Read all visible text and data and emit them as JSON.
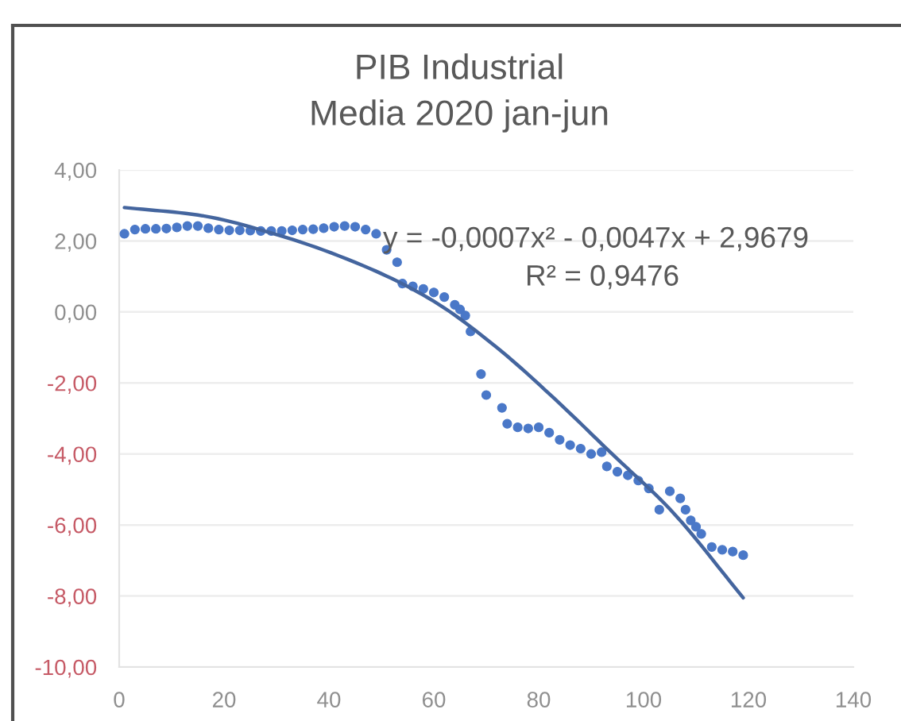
{
  "chart_data": {
    "type": "scatter",
    "title": "PIB Industrial",
    "subtitle": "Media 2020 jan-jun",
    "series": [
      {
        "color": "#4a78c8",
        "marker": "circle",
        "x": [
          1,
          3,
          5,
          7,
          9,
          11,
          13,
          15,
          17,
          19,
          21,
          23,
          25,
          27,
          29,
          31,
          33,
          35,
          37,
          39,
          41,
          43,
          45,
          47,
          49,
          51,
          53,
          54,
          56,
          58,
          60,
          62,
          64,
          65,
          66,
          67,
          69,
          70,
          73,
          74,
          76,
          78,
          80,
          82,
          84,
          86,
          88,
          90,
          92,
          93,
          95,
          97,
          99,
          101,
          103,
          105,
          107,
          108,
          109,
          110,
          111,
          113,
          115,
          117,
          119
        ],
        "values": [
          2.2,
          2.32,
          2.34,
          2.34,
          2.35,
          2.38,
          2.42,
          2.42,
          2.36,
          2.32,
          2.3,
          2.3,
          2.29,
          2.28,
          2.28,
          2.28,
          2.3,
          2.32,
          2.33,
          2.36,
          2.4,
          2.42,
          2.4,
          2.32,
          2.2,
          1.75,
          1.4,
          0.8,
          0.72,
          0.65,
          0.55,
          0.42,
          0.2,
          0.07,
          -0.1,
          -0.55,
          -1.75,
          -2.34,
          -2.7,
          -3.15,
          -3.25,
          -3.28,
          -3.25,
          -3.4,
          -3.6,
          -3.75,
          -3.85,
          -4.0,
          -3.95,
          -4.35,
          -4.5,
          -4.6,
          -4.75,
          -4.97,
          -5.57,
          -5.05,
          -5.25,
          -5.57,
          -5.87,
          -6.05,
          -6.25,
          -6.62,
          -6.7,
          -6.75,
          -6.85
        ]
      },
      {
        "type": "line",
        "color": "#44659e",
        "x": [
          1,
          15,
          30,
          48,
          60,
          72,
          83,
          94,
          105,
          119
        ],
        "values": [
          2.94,
          2.73,
          2.18,
          1.21,
          0.3,
          -1.0,
          -2.44,
          -4.0,
          -5.55,
          -8.05
        ]
      }
    ],
    "xlim": [
      0,
      140
    ],
    "xticks": [
      0,
      20,
      40,
      60,
      80,
      100,
      120,
      140
    ],
    "ylim": [
      -10,
      4
    ],
    "yticks": [
      {
        "value": 4,
        "label": "4,00"
      },
      {
        "value": 2,
        "label": "2,00"
      },
      {
        "value": 0,
        "label": "0,00"
      },
      {
        "value": -2,
        "label": "-2,00"
      },
      {
        "value": -4,
        "label": "-4,00"
      },
      {
        "value": -6,
        "label": "-6,00"
      },
      {
        "value": -8,
        "label": "-8,00"
      },
      {
        "value": -10,
        "label": "-10,00"
      }
    ],
    "grid": "y",
    "annotations": [
      "y = -0,0007x² - 0,0047x + 2,9679",
      "R² = 0,9476"
    ]
  }
}
